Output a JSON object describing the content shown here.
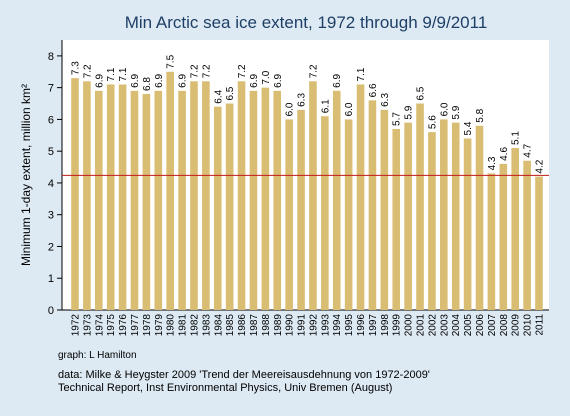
{
  "chart_data": {
    "type": "bar",
    "title": "Min Arctic sea ice extent, 1972 through 9/9/2011",
    "xlabel": "",
    "ylabel": "Minimum 1-day extent, million km²",
    "ylim": [
      0,
      8.5
    ],
    "yticks": [
      0,
      1,
      2,
      3,
      4,
      5,
      6,
      7,
      8
    ],
    "reference_line": 4.24,
    "categories": [
      "1972",
      "1973",
      "1974",
      "1975",
      "1976",
      "1977",
      "1978",
      "1979",
      "1980",
      "1981",
      "1982",
      "1983",
      "1984",
      "1985",
      "1986",
      "1987",
      "1988",
      "1989",
      "1990",
      "1991",
      "1992",
      "1993",
      "1994",
      "1995",
      "1996",
      "1997",
      "1998",
      "1999",
      "2000",
      "2001",
      "2002",
      "2003",
      "2004",
      "2005",
      "2006",
      "2007",
      "2008",
      "2009",
      "2010",
      "2011"
    ],
    "values": [
      7.3,
      7.2,
      6.9,
      7.1,
      7.1,
      6.9,
      6.8,
      6.9,
      7.5,
      6.9,
      7.2,
      7.2,
      6.4,
      6.5,
      7.2,
      6.9,
      7.0,
      6.9,
      6.0,
      6.3,
      7.2,
      6.1,
      6.9,
      6.0,
      7.1,
      6.6,
      6.3,
      5.7,
      5.9,
      6.5,
      5.6,
      6.0,
      5.9,
      5.4,
      5.8,
      4.3,
      4.6,
      5.1,
      4.7,
      4.2
    ],
    "labels": [
      "7.3",
      "7.2",
      "6.9",
      "7.1",
      "7.1",
      "6.9",
      "6.8",
      "6.9",
      "7.5",
      "6.9",
      "7.2",
      "7.2",
      "6.4",
      "6.5",
      "7.2",
      "6.9",
      "7.0",
      "6.9",
      "6.0",
      "6.3",
      "7.2",
      "6.1",
      "6.9",
      "6.0",
      "7.1",
      "6.6",
      "6.3",
      "5.7",
      "5.9",
      "6.5",
      "5.6",
      "6.0",
      "5.9",
      "5.4",
      "5.8",
      "4.3",
      "4.6",
      "5.1",
      "4.7",
      "4.2"
    ],
    "grid": false,
    "colors": {
      "bar": "#d9bd73",
      "reference_line": "#c01818",
      "title": "#1e3f66",
      "background": "#ddeaf3",
      "plot_background": "#ffffff"
    }
  },
  "footer": {
    "credit": "graph:  L Hamilton",
    "source_line1": "data: Milke & Heygster 2009 'Trend der Meereisausdehnung von 1972-2009'",
    "source_line2": "Technical Report, Inst Environmental Physics, Univ Bremen (August)"
  }
}
